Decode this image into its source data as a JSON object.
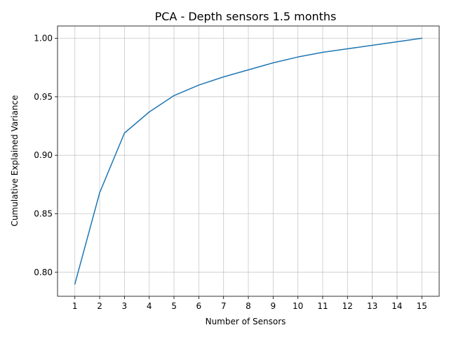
{
  "chart_data": {
    "type": "line",
    "title": "PCA - Depth sensors 1.5 months",
    "xlabel": "Number of Sensors",
    "ylabel": "Cumulative Explained Variance",
    "x": [
      1,
      2,
      3,
      4,
      5,
      6,
      7,
      8,
      9,
      10,
      11,
      12,
      13,
      14,
      15
    ],
    "series": [
      {
        "values": [
          0.79,
          0.868,
          0.919,
          0.937,
          0.951,
          0.96,
          0.967,
          0.973,
          0.979,
          0.984,
          0.988,
          0.991,
          0.994,
          0.997,
          1.0
        ],
        "color": "#1f77b4"
      }
    ],
    "xticks": [
      "1",
      "2",
      "3",
      "4",
      "5",
      "6",
      "7",
      "8",
      "9",
      "10",
      "11",
      "12",
      "13",
      "14",
      "15"
    ],
    "yticks": [
      "0.80",
      "0.85",
      "0.90",
      "0.95",
      "1.00"
    ],
    "ytick_values": [
      0.8,
      0.85,
      0.9,
      0.95,
      1.0
    ],
    "xlim": [
      0.3,
      15.7
    ],
    "ylim": [
      0.7795,
      1.0105
    ],
    "grid": true
  }
}
